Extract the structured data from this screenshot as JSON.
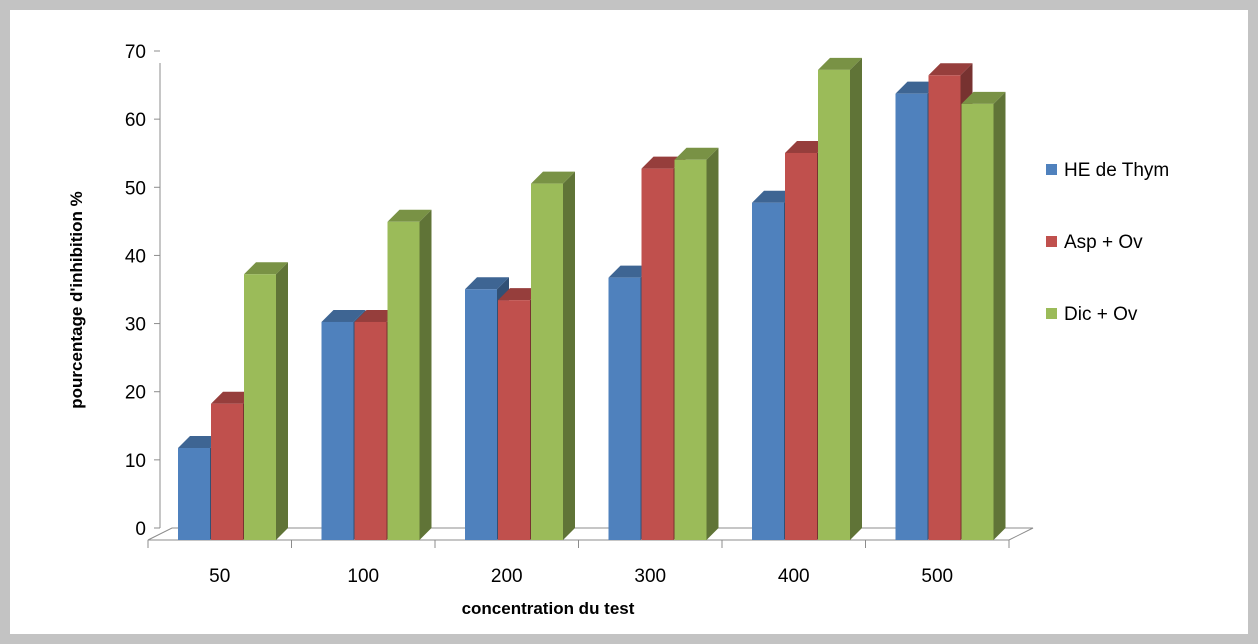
{
  "chart_data": {
    "type": "bar",
    "style": "3d-clustered-column",
    "title": "",
    "xlabel": "concentration du test",
    "ylabel": "pourcentage d'inhibition %",
    "categories": [
      "50",
      "100",
      "200",
      "300",
      "400",
      "500"
    ],
    "series": [
      {
        "name": "HE de Thym",
        "values": [
          13.5,
          32,
          36.8,
          38.5,
          49.5,
          65.5
        ],
        "color": "#4f81bd"
      },
      {
        "name": "Asp + Ov",
        "values": [
          20,
          32,
          35.2,
          54.5,
          56.8,
          68.2
        ],
        "color": "#c0504d"
      },
      {
        "name": "Dic + Ov",
        "values": [
          39,
          46.7,
          52.3,
          55.8,
          69,
          64
        ]
      }
    ],
    "series_colors": [
      "#4f81bd",
      "#c0504d",
      "#9bbb59"
    ],
    "ylim": [
      0,
      70
    ],
    "yticks": [
      "0",
      "10",
      "20",
      "30",
      "40",
      "50",
      "60",
      "70"
    ],
    "grid": false,
    "legend_position": "right"
  }
}
